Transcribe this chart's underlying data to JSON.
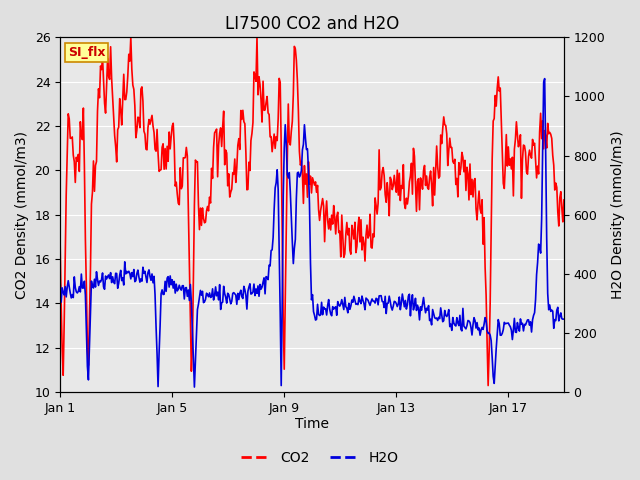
{
  "title": "LI7500 CO2 and H2O",
  "xlabel": "Time",
  "ylabel_left": "CO2 Density (mmol/m3)",
  "ylabel_right": "H2O Density (mmol/m3)",
  "ylim_left": [
    10,
    26
  ],
  "ylim_right": [
    0,
    1200
  ],
  "yticks_left": [
    10,
    12,
    14,
    16,
    18,
    20,
    22,
    24,
    26
  ],
  "yticks_right": [
    0,
    200,
    400,
    600,
    800,
    1000,
    1200
  ],
  "xtick_labels": [
    "Jan 1",
    "Jan 5",
    "Jan 9",
    "Jan 13",
    "Jan 17"
  ],
  "xtick_positions": [
    0,
    4,
    8,
    12,
    16
  ],
  "xlim": [
    0,
    18
  ],
  "fig_bg_color": "#e0e0e0",
  "plot_bg_color": "#e8e8e8",
  "co2_color": "#ff0000",
  "h2o_color": "#0000dd",
  "grid_color": "#ffffff",
  "annotation_text": "SI_flx",
  "annotation_bg": "#ffff99",
  "annotation_border": "#cc8800",
  "annotation_text_color": "#cc0000",
  "title_fontsize": 12,
  "axis_label_fontsize": 10,
  "tick_fontsize": 9,
  "linewidth": 1.2
}
